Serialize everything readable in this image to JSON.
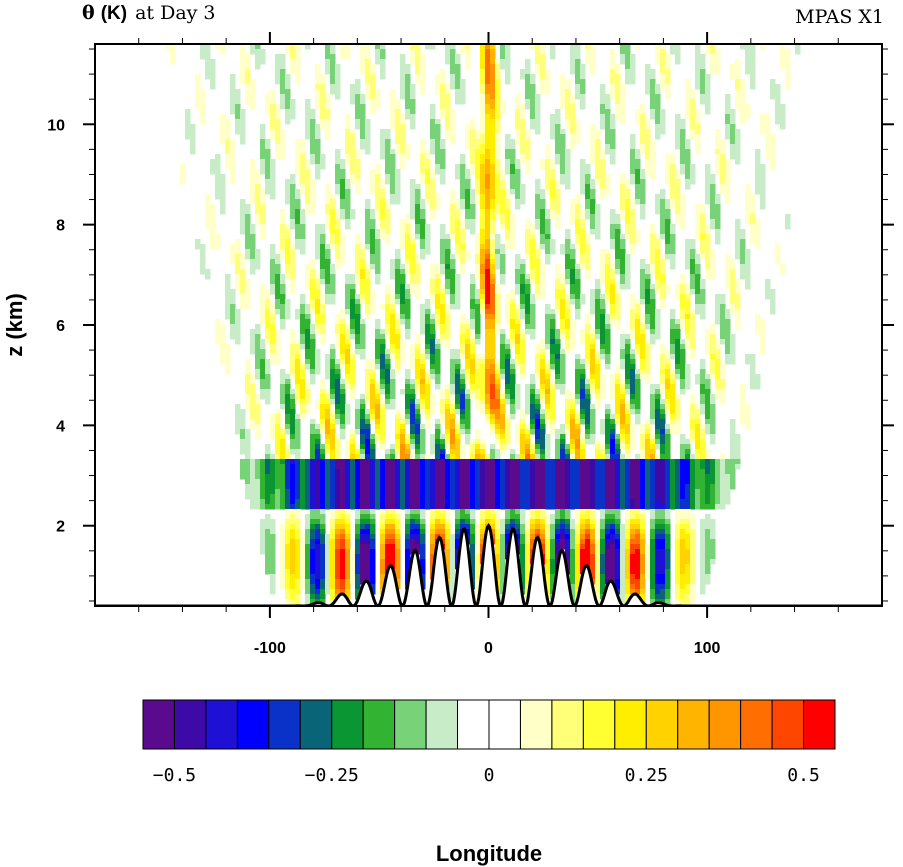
{
  "chart_data": {
    "type": "heatmap",
    "title_symbol": "θ",
    "title_unit": "(K)",
    "title_rest": "at Day 3",
    "right_title": "MPAS X1",
    "xlabel": "Longitude",
    "ylabel": "z (km)",
    "xlim": [
      -180,
      180
    ],
    "ylim": [
      0.4,
      11.6
    ],
    "x_ticks": [
      -100,
      0,
      100
    ],
    "x_tick_labels": [
      "-100",
      "0",
      "100"
    ],
    "y_ticks": [
      2,
      4,
      6,
      8,
      10
    ],
    "y_tick_labels": [
      "2",
      "4",
      "6",
      "8",
      "10"
    ],
    "mountain": {
      "center": 0,
      "half_width": 90,
      "peak_height": 2.0,
      "wavelength": 11.25,
      "base_height": 0.4
    },
    "colorbar": {
      "levels": [
        -0.55,
        -0.5,
        -0.45,
        -0.4,
        -0.35,
        -0.3,
        -0.25,
        -0.2,
        -0.15,
        -0.1,
        -0.05,
        0,
        0.05,
        0.1,
        0.15,
        0.2,
        0.25,
        0.3,
        0.35,
        0.4,
        0.45,
        0.5,
        0.55
      ],
      "colors": [
        "#5a0a8c",
        "#3d0aa8",
        "#1f10d6",
        "#0000ff",
        "#0a32c8",
        "#0a6478",
        "#0a9632",
        "#32b432",
        "#78d278",
        "#c8ecc8",
        "#ffffff",
        "#ffffff",
        "#ffffc8",
        "#ffff78",
        "#ffff32",
        "#ffee00",
        "#ffd200",
        "#ffb400",
        "#ff9600",
        "#ff6e00",
        "#ff4600",
        "#ff0000"
      ],
      "tick_values": [
        -0.5,
        -0.25,
        0,
        0.25,
        0.5
      ],
      "tick_labels": [
        "−0.5",
        "−0.25",
        "0",
        "0.25",
        "0.5"
      ]
    }
  }
}
